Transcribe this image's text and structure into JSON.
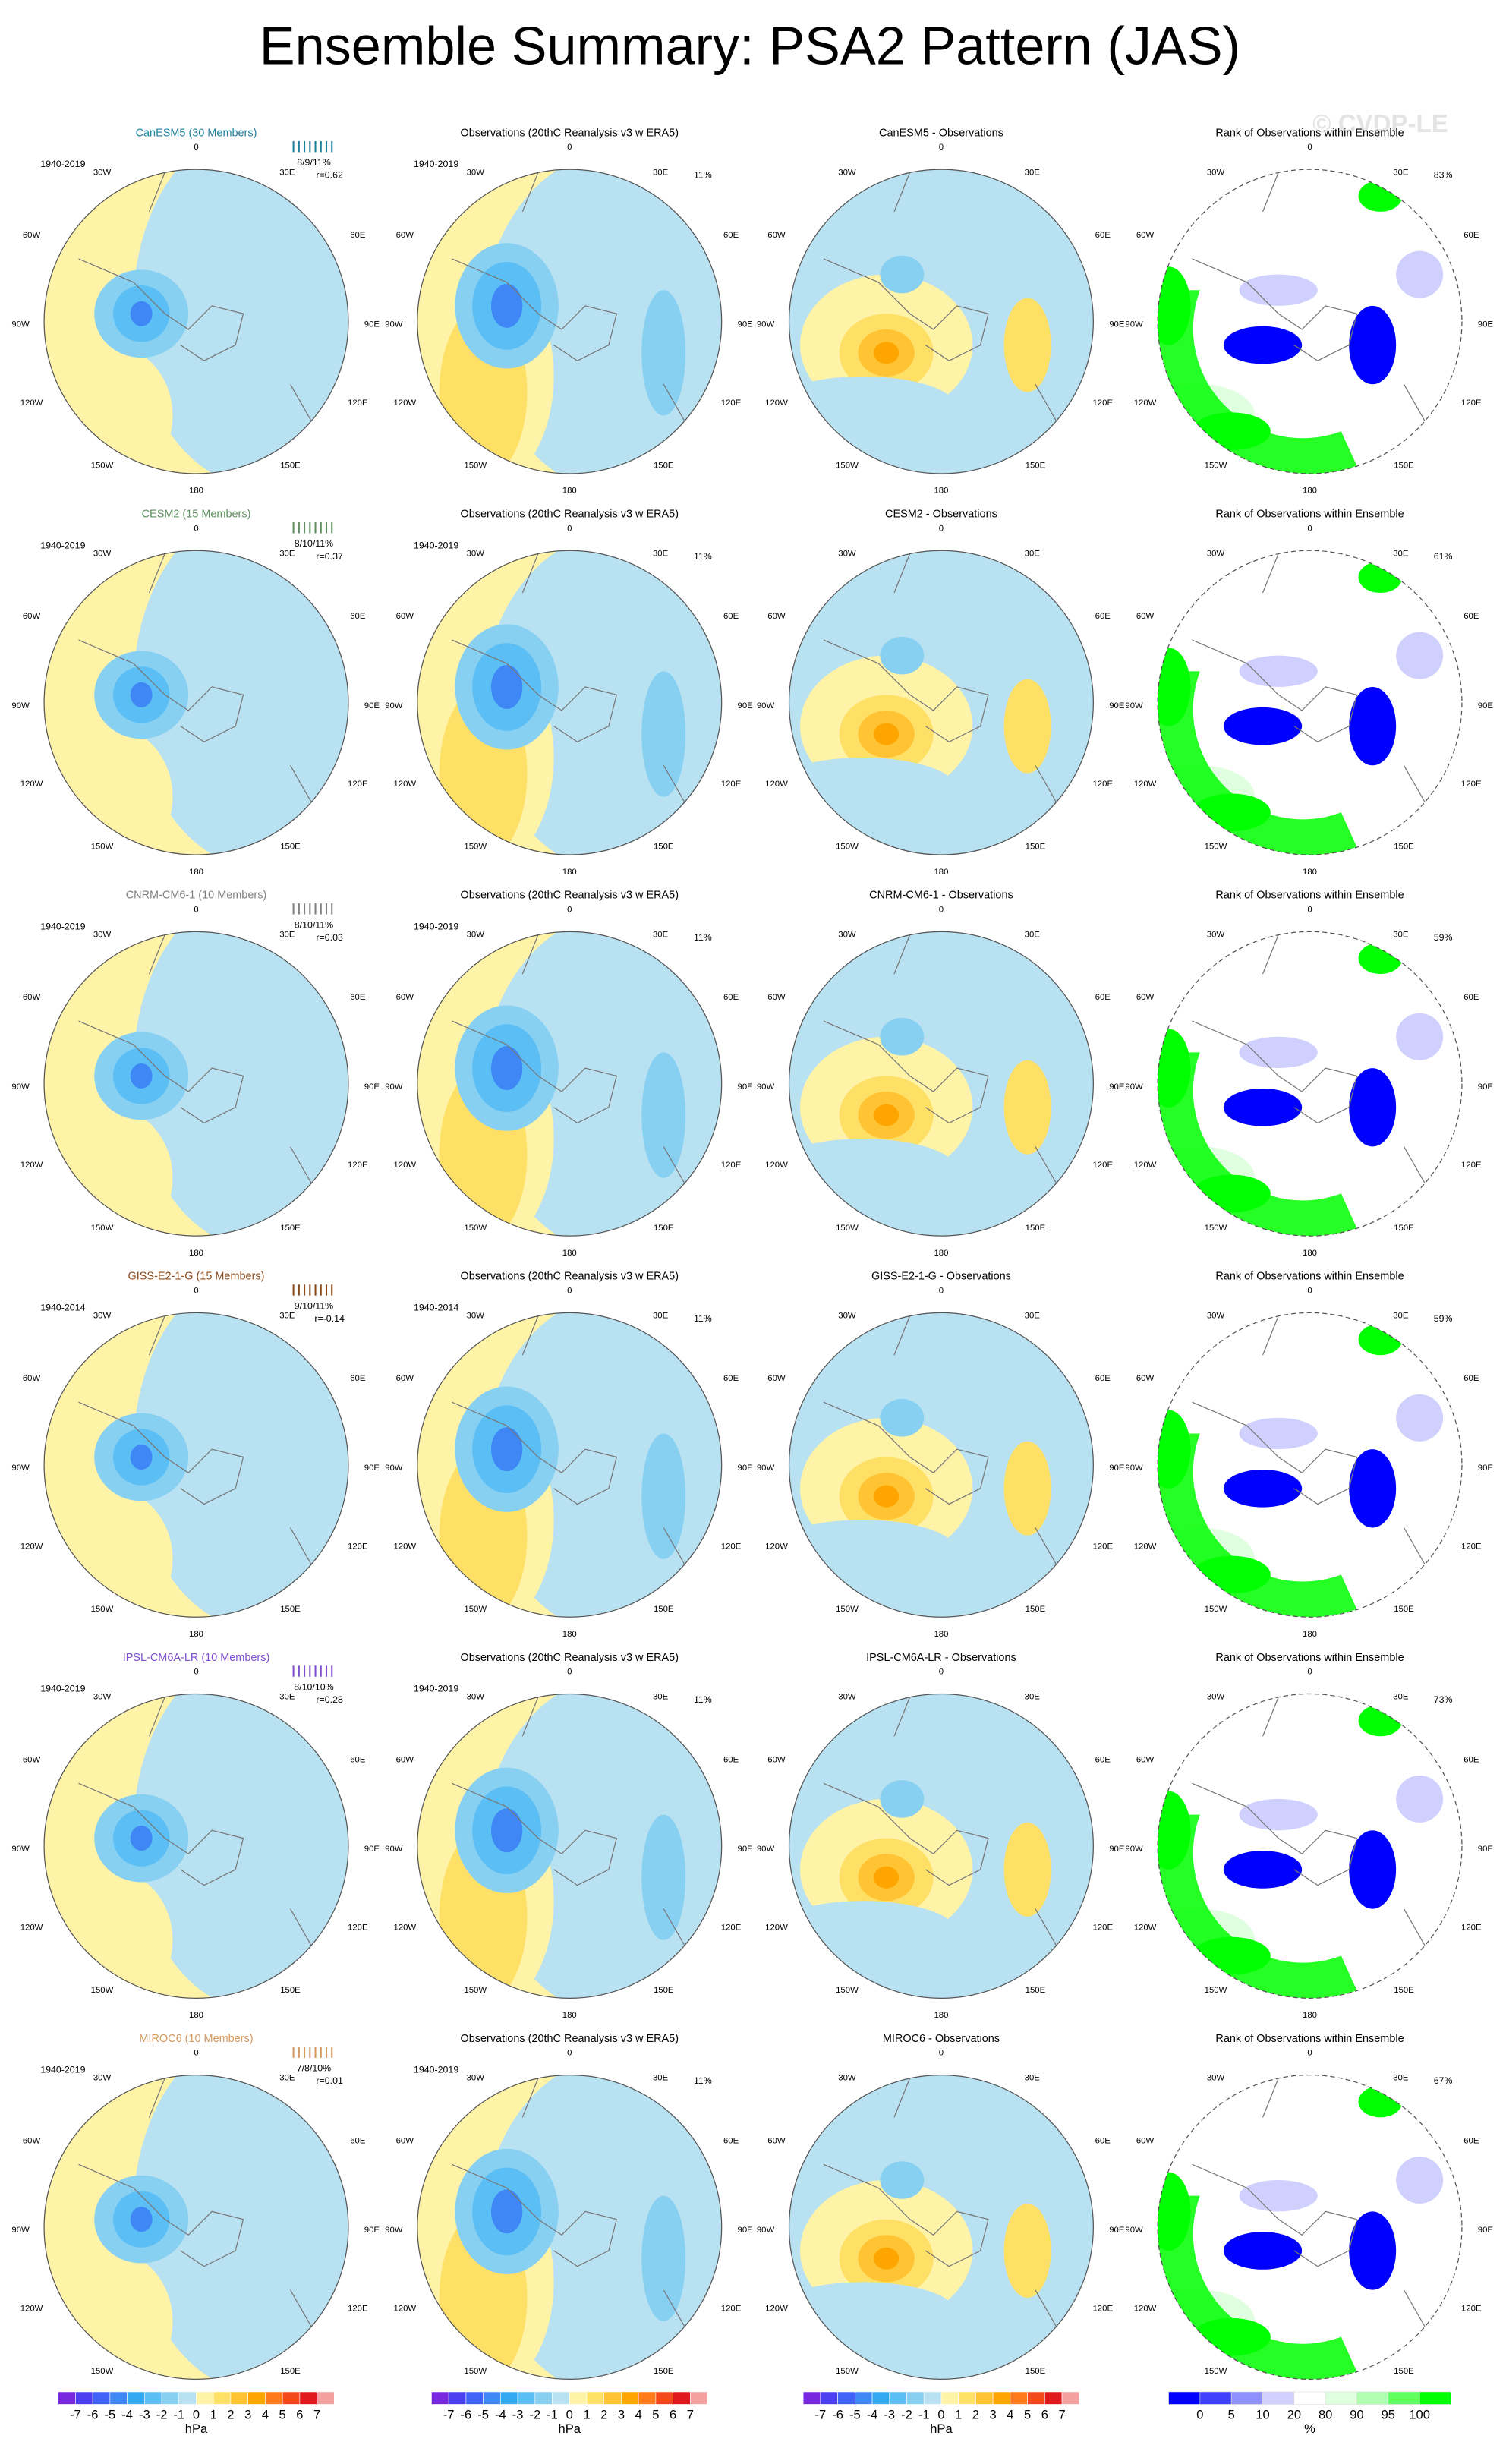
{
  "title": "Ensemble Summary: PSA2 Pattern (JAS)",
  "watermark": "© CVDP-LE",
  "lon_labels": [
    "0",
    "30E",
    "60E",
    "90E",
    "120E",
    "150E",
    "180",
    "150W",
    "120W",
    "90W",
    "60W",
    "30W"
  ],
  "rows": [
    {
      "model": "CanESM5 (30 Members)",
      "color": "#1f7f9f",
      "model_years": "1940-2019",
      "stats": "8/9/11%",
      "corr": "r=0.62",
      "obs_title": "Observations (20thC Reanalysis v3 w ERA5)",
      "obs_years": "1940-2019",
      "obs_pct": "11%",
      "diff_title": "CanESM5 - Observations",
      "rank_title": "Rank of Observations within Ensemble",
      "rank_pct": "83%"
    },
    {
      "model": "CESM2 (15 Members)",
      "color": "#5f8f5f",
      "model_years": "1940-2019",
      "stats": "8/10/11%",
      "corr": "r=0.37",
      "obs_title": "Observations (20thC Reanalysis v3 w ERA5)",
      "obs_years": "1940-2019",
      "obs_pct": "11%",
      "diff_title": "CESM2 - Observations",
      "rank_title": "Rank of Observations within Ensemble",
      "rank_pct": "61%"
    },
    {
      "model": "CNRM-CM6-1 (10 Members)",
      "color": "#808080",
      "model_years": "1940-2019",
      "stats": "8/10/11%",
      "corr": "r=0.03",
      "obs_title": "Observations (20thC Reanalysis v3 w ERA5)",
      "obs_years": "1940-2019",
      "obs_pct": "11%",
      "diff_title": "CNRM-CM6-1 - Observations",
      "rank_title": "Rank of Observations within Ensemble",
      "rank_pct": "59%"
    },
    {
      "model": "GISS-E2-1-G (15 Members)",
      "color": "#8b4a1a",
      "model_years": "1940-2014",
      "stats": "9/10/11%",
      "corr": "r=-0.14",
      "obs_title": "Observations (20thC Reanalysis v3 w ERA5)",
      "obs_years": "1940-2014",
      "obs_pct": "11%",
      "diff_title": "GISS-E2-1-G - Observations",
      "rank_title": "Rank of Observations within Ensemble",
      "rank_pct": "59%"
    },
    {
      "model": "IPSL-CM6A-LR (10 Members)",
      "color": "#7f4fcf",
      "model_years": "1940-2019",
      "stats": "8/10/10%",
      "corr": "r=0.28",
      "obs_title": "Observations (20thC Reanalysis v3 w ERA5)",
      "obs_years": "1940-2019",
      "obs_pct": "11%",
      "diff_title": "IPSL-CM6A-LR - Observations",
      "rank_title": "Rank of Observations within Ensemble",
      "rank_pct": "73%"
    },
    {
      "model": "MIROC6 (10 Members)",
      "color": "#d4975f",
      "model_years": "1940-2019",
      "stats": "7/8/10%",
      "corr": "r=0.01",
      "obs_title": "Observations (20thC Reanalysis v3 w ERA5)",
      "obs_years": "1940-2019",
      "obs_pct": "11%",
      "diff_title": "MIROC6 - Observations",
      "rank_title": "Rank of Observations within Ensemble",
      "rank_pct": "67%"
    }
  ],
  "colorbar": {
    "labels": [
      "-7",
      "-6",
      "-5",
      "-4",
      "-3",
      "-2",
      "-1",
      "0",
      "1",
      "2",
      "3",
      "4",
      "5",
      "6",
      "7"
    ],
    "units": "hPa"
  },
  "rank_colorbar": {
    "labels": [
      "0",
      "5",
      "10",
      "20",
      "80",
      "90",
      "95",
      "100"
    ],
    "units": "%"
  }
}
